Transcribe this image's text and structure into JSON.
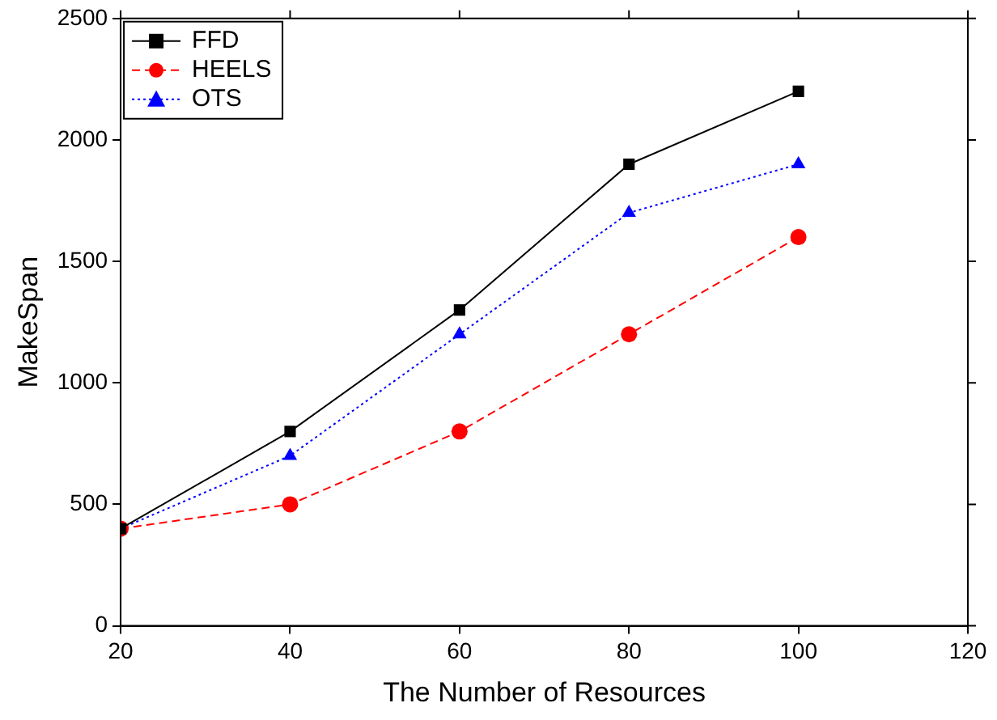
{
  "chart_data": {
    "type": "line",
    "xlabel": "The Number of Resources",
    "ylabel": "MakeSpan",
    "x": [
      20,
      40,
      60,
      80,
      100
    ],
    "series": [
      {
        "name": "FFD",
        "color": "#000000",
        "marker": "square",
        "line_style": "solid",
        "values": [
          400,
          800,
          1300,
          1900,
          2200
        ]
      },
      {
        "name": "HEELS",
        "color": "#ff0000",
        "marker": "circle",
        "line_style": "dashed",
        "values": [
          400,
          500,
          800,
          1200,
          1600
        ]
      },
      {
        "name": "OTS",
        "color": "#0000ff",
        "marker": "triangle",
        "line_style": "dotted",
        "values": [
          400,
          700,
          1200,
          1700,
          1900
        ]
      }
    ],
    "xlim": [
      20,
      120
    ],
    "xticks": [
      20,
      40,
      60,
      80,
      100,
      120
    ],
    "ylim": [
      0,
      2500
    ],
    "yticks": [
      0,
      500,
      1000,
      1500,
      2000,
      2500
    ],
    "grid": false,
    "legend": "top left"
  }
}
